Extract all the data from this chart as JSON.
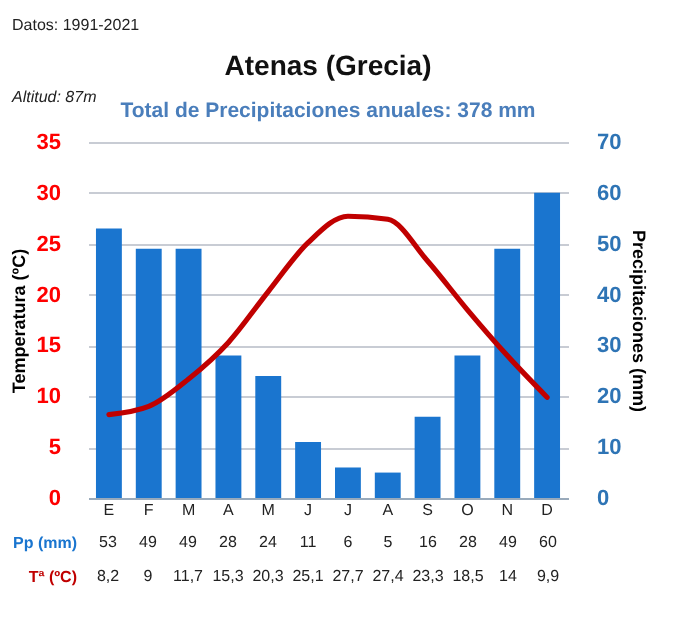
{
  "chart_data": {
    "type": "bar",
    "title": "Atenas (Grecia)",
    "subtitle": "Total de Precipitaciones anuales: 378 mm",
    "ylabel": "Temperatura (ºC)",
    "y2label": "Precipitaciones (mm)",
    "annotations": [
      "Datos: 1991-2021",
      "Altitud: 87m"
    ],
    "categories": [
      "E",
      "F",
      "M",
      "A",
      "M",
      "J",
      "J",
      "A",
      "S",
      "O",
      "N",
      "D"
    ],
    "series": [
      {
        "name": "Pp (mm)",
        "axis": "y2",
        "color": "#1a75cf",
        "values": [
          53,
          49,
          49,
          28,
          24,
          11,
          6,
          5,
          16,
          28,
          49,
          60
        ],
        "value_labels": [
          "53",
          "49",
          "49",
          "28",
          "24",
          "11",
          "6",
          "5",
          "16",
          "28",
          "49",
          "60"
        ]
      },
      {
        "name": "Tª (ºC)",
        "type": "line",
        "color": "#c00000",
        "values": [
          8.2,
          9,
          11.7,
          15.3,
          20.3,
          25.1,
          27.7,
          27.4,
          23.3,
          18.5,
          14,
          9.9
        ],
        "value_labels": [
          "8,2",
          "9",
          "11,7",
          "15,3",
          "20,3",
          "25,1",
          "27,7",
          "27,4",
          "23,3",
          "18,5",
          "14",
          "9,9"
        ]
      }
    ],
    "ylim": [
      0,
      35
    ],
    "yticks": [
      0,
      5,
      10,
      15,
      20,
      25,
      30,
      35
    ],
    "y2lim": [
      0,
      70
    ],
    "y2ticks": [
      0,
      10,
      20,
      30,
      40,
      50,
      60,
      70
    ],
    "grid": "y",
    "marker": "none",
    "line_style": "solid"
  }
}
